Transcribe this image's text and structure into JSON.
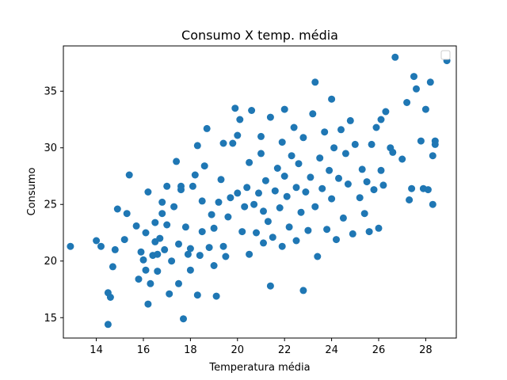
{
  "chart_data": {
    "type": "scatter",
    "title": "Consumo X temp. média",
    "xlabel": "Temperatura média",
    "ylabel": "Consumo",
    "xlim": [
      12.6,
      29.3
    ],
    "ylim": [
      13.2,
      39.0
    ],
    "xticks": [
      14,
      16,
      18,
      20,
      22,
      24,
      26,
      28
    ],
    "yticks": [
      15,
      20,
      25,
      30,
      35
    ],
    "grid": false,
    "legend": "top-right",
    "marker_color": "#1f77b4",
    "series": [
      {
        "points": [
          [
            12.9,
            21.3
          ],
          [
            14.0,
            21.8
          ],
          [
            14.2,
            21.3
          ],
          [
            14.5,
            14.4
          ],
          [
            14.5,
            17.2
          ],
          [
            14.6,
            16.8
          ],
          [
            14.7,
            19.5
          ],
          [
            14.8,
            21.0
          ],
          [
            14.9,
            24.6
          ],
          [
            15.2,
            21.9
          ],
          [
            15.3,
            24.2
          ],
          [
            15.4,
            27.6
          ],
          [
            15.7,
            23.1
          ],
          [
            15.8,
            18.4
          ],
          [
            15.9,
            20.8
          ],
          [
            16.0,
            20.1
          ],
          [
            16.1,
            19.2
          ],
          [
            16.1,
            22.5
          ],
          [
            16.2,
            26.1
          ],
          [
            16.2,
            16.2
          ],
          [
            16.3,
            18.0
          ],
          [
            16.4,
            20.5
          ],
          [
            16.5,
            21.7
          ],
          [
            16.5,
            23.4
          ],
          [
            16.6,
            19.1
          ],
          [
            16.6,
            20.6
          ],
          [
            16.7,
            22.0
          ],
          [
            16.8,
            25.2
          ],
          [
            16.8,
            24.2
          ],
          [
            16.9,
            21.0
          ],
          [
            17.0,
            23.2
          ],
          [
            17.0,
            26.6
          ],
          [
            17.1,
            17.1
          ],
          [
            17.2,
            20.0
          ],
          [
            17.3,
            24.8
          ],
          [
            17.4,
            28.8
          ],
          [
            17.5,
            18.0
          ],
          [
            17.5,
            21.5
          ],
          [
            17.6,
            26.6
          ],
          [
            17.6,
            26.3
          ],
          [
            17.7,
            14.9
          ],
          [
            17.8,
            23.0
          ],
          [
            17.9,
            20.6
          ],
          [
            18.0,
            19.2
          ],
          [
            18.0,
            21.1
          ],
          [
            18.1,
            26.6
          ],
          [
            18.2,
            27.6
          ],
          [
            18.3,
            17.0
          ],
          [
            18.3,
            30.2
          ],
          [
            18.4,
            20.5
          ],
          [
            18.5,
            22.6
          ],
          [
            18.5,
            25.3
          ],
          [
            18.6,
            28.4
          ],
          [
            18.7,
            31.7
          ],
          [
            18.8,
            21.2
          ],
          [
            18.9,
            24.1
          ],
          [
            19.0,
            19.6
          ],
          [
            19.0,
            22.9
          ],
          [
            19.1,
            16.9
          ],
          [
            19.2,
            25.2
          ],
          [
            19.3,
            27.2
          ],
          [
            19.4,
            30.4
          ],
          [
            19.4,
            21.3
          ],
          [
            19.5,
            20.4
          ],
          [
            19.6,
            23.9
          ],
          [
            19.7,
            25.6
          ],
          [
            19.8,
            30.4
          ],
          [
            19.9,
            33.5
          ],
          [
            20.0,
            31.1
          ],
          [
            20.0,
            26.0
          ],
          [
            20.1,
            32.5
          ],
          [
            20.2,
            22.6
          ],
          [
            20.3,
            24.8
          ],
          [
            20.4,
            26.5
          ],
          [
            20.5,
            28.7
          ],
          [
            20.5,
            20.6
          ],
          [
            20.6,
            33.3
          ],
          [
            20.7,
            25.0
          ],
          [
            20.8,
            22.5
          ],
          [
            20.9,
            26.0
          ],
          [
            21.0,
            29.5
          ],
          [
            21.0,
            31.0
          ],
          [
            21.1,
            24.4
          ],
          [
            21.1,
            21.6
          ],
          [
            21.2,
            27.1
          ],
          [
            21.3,
            23.5
          ],
          [
            21.4,
            32.7
          ],
          [
            21.4,
            17.8
          ],
          [
            21.5,
            22.1
          ],
          [
            21.6,
            26.2
          ],
          [
            21.7,
            28.2
          ],
          [
            21.8,
            24.7
          ],
          [
            21.9,
            30.5
          ],
          [
            21.9,
            21.3
          ],
          [
            22.0,
            27.5
          ],
          [
            22.0,
            33.4
          ],
          [
            22.1,
            25.7
          ],
          [
            22.2,
            23.0
          ],
          [
            22.3,
            29.3
          ],
          [
            22.4,
            31.8
          ],
          [
            22.5,
            26.5
          ],
          [
            22.5,
            21.8
          ],
          [
            22.6,
            28.6
          ],
          [
            22.7,
            24.3
          ],
          [
            22.8,
            30.9
          ],
          [
            22.8,
            17.4
          ],
          [
            22.9,
            26.1
          ],
          [
            23.0,
            22.7
          ],
          [
            23.1,
            27.4
          ],
          [
            23.2,
            33.0
          ],
          [
            23.3,
            35.8
          ],
          [
            23.3,
            24.8
          ],
          [
            23.4,
            20.4
          ],
          [
            23.5,
            29.1
          ],
          [
            23.6,
            26.4
          ],
          [
            23.7,
            31.4
          ],
          [
            23.8,
            22.8
          ],
          [
            23.9,
            28.0
          ],
          [
            24.0,
            34.3
          ],
          [
            24.0,
            25.5
          ],
          [
            24.1,
            30.0
          ],
          [
            24.2,
            21.9
          ],
          [
            24.3,
            27.3
          ],
          [
            24.4,
            31.6
          ],
          [
            24.5,
            23.8
          ],
          [
            24.6,
            29.5
          ],
          [
            24.7,
            26.8
          ],
          [
            24.8,
            32.4
          ],
          [
            24.9,
            22.4
          ],
          [
            25.0,
            30.3
          ],
          [
            25.2,
            25.6
          ],
          [
            25.3,
            28.1
          ],
          [
            25.4,
            24.2
          ],
          [
            25.5,
            27.0
          ],
          [
            25.6,
            22.6
          ],
          [
            25.7,
            30.3
          ],
          [
            25.8,
            26.3
          ],
          [
            25.9,
            31.8
          ],
          [
            26.0,
            22.9
          ],
          [
            26.1,
            28.0
          ],
          [
            26.1,
            32.5
          ],
          [
            26.2,
            26.7
          ],
          [
            26.3,
            33.2
          ],
          [
            26.5,
            30.0
          ],
          [
            26.6,
            29.6
          ],
          [
            26.7,
            38.0
          ],
          [
            27.0,
            29.0
          ],
          [
            27.2,
            34.0
          ],
          [
            27.3,
            25.4
          ],
          [
            27.4,
            26.4
          ],
          [
            27.5,
            36.3
          ],
          [
            27.6,
            35.2
          ],
          [
            27.8,
            30.6
          ],
          [
            27.9,
            26.4
          ],
          [
            28.0,
            33.4
          ],
          [
            28.1,
            26.3
          ],
          [
            28.2,
            35.8
          ],
          [
            28.3,
            29.3
          ],
          [
            28.3,
            25.0
          ],
          [
            28.4,
            30.6
          ],
          [
            28.4,
            30.3
          ],
          [
            28.9,
            37.7
          ]
        ]
      }
    ]
  }
}
